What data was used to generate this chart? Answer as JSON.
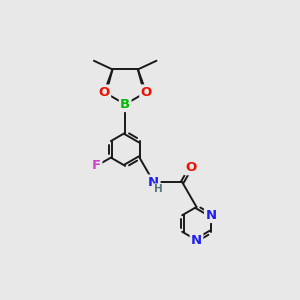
{
  "bg_color": "#e8e8e8",
  "bond_color": "#1a1a1a",
  "bond_lw": 1.4,
  "dbo": 0.048,
  "colors": {
    "B": "#00bb00",
    "O": "#ee1100",
    "F": "#cc44cc",
    "N": "#2020ee",
    "H": "#557777",
    "C": "#1a1a1a"
  },
  "fs": 9.5,
  "fsH": 7.5
}
